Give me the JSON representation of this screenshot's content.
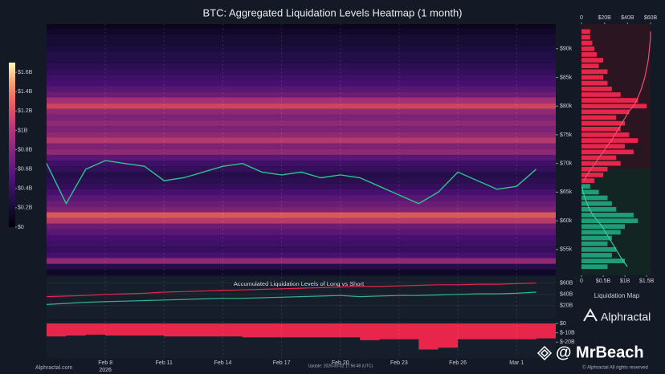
{
  "title": "BTC: Aggregated Liquidation Levels Heatmap (1 month)",
  "side_title": "Liquidation Map",
  "brand": "Alphractal",
  "watermark": "@ MrBeach",
  "footer": {
    "site": "Alphractal.com",
    "update": "Update: 2026-03-02 17:56:48 (UTC)",
    "rights": "© Alphractal All rights reserved"
  },
  "chart_data": [
    {
      "type": "heatmap",
      "y": [
        51000,
        52000,
        53000,
        54000,
        55000,
        56000,
        57000,
        58000,
        59000,
        60000,
        61000,
        62000,
        63000,
        64000,
        65000,
        66000,
        67000,
        68000,
        69000,
        70000,
        71000,
        72000,
        73000,
        74000,
        75000,
        76000,
        77000,
        78000,
        79000,
        80000,
        81000,
        82000,
        83000,
        84000,
        85000,
        86000,
        87000,
        88000,
        89000,
        90000,
        91000,
        92000,
        93000,
        94000
      ],
      "values": [
        0.15,
        0.3,
        0.9,
        0.5,
        0.4,
        0.45,
        0.5,
        0.6,
        0.7,
        1.1,
        1.3,
        0.8,
        0.7,
        0.6,
        0.5,
        0.4,
        0.35,
        0.3,
        0.4,
        0.45,
        0.6,
        0.9,
        0.8,
        1.1,
        0.9,
        0.8,
        0.9,
        0.8,
        0.9,
        1.2,
        1.0,
        0.7,
        0.6,
        0.5,
        0.45,
        0.4,
        0.35,
        0.3,
        0.3,
        0.25,
        0.2,
        0.2,
        0.15,
        0.1
      ],
      "clim": [
        0,
        1.7
      ],
      "cticks": [
        {
          "value": 0,
          "label": "$0"
        },
        {
          "value": 0.2,
          "label": "$0.2B"
        },
        {
          "value": 0.4,
          "label": "$0.4B"
        },
        {
          "value": 0.6,
          "label": "$0.6B"
        },
        {
          "value": 0.8,
          "label": "$0.8B"
        },
        {
          "value": 1,
          "label": "$1B"
        },
        {
          "value": 1.2,
          "label": "$1.2B"
        },
        {
          "value": 1.4,
          "label": "$1.4B"
        },
        {
          "value": 1.6,
          "label": "$1.6B"
        }
      ],
      "ylim": [
        50500,
        94300
      ],
      "yticks": [
        {
          "value": 55000,
          "label": "$55k"
        },
        {
          "value": 60000,
          "label": "$60k"
        },
        {
          "value": 65000,
          "label": "$65k"
        },
        {
          "value": 70000,
          "label": "$70k"
        },
        {
          "value": 75000,
          "label": "$75k"
        },
        {
          "value": 80000,
          "label": "$80k"
        },
        {
          "value": 85000,
          "label": "$85k"
        },
        {
          "value": 90000,
          "label": "$90k"
        }
      ],
      "xlim": [
        "2026-02-05",
        "2026-03-03"
      ],
      "price": {
        "color": "#2bc48a",
        "x": [
          "2026-02-05",
          "2026-02-06",
          "2026-02-07",
          "2026-02-08",
          "2026-02-09",
          "2026-02-10",
          "2026-02-11",
          "2026-02-12",
          "2026-02-13",
          "2026-02-14",
          "2026-02-15",
          "2026-02-16",
          "2026-02-17",
          "2026-02-18",
          "2026-02-19",
          "2026-02-20",
          "2026-02-21",
          "2026-02-22",
          "2026-02-23",
          "2026-02-24",
          "2026-02-25",
          "2026-02-26",
          "2026-02-27",
          "2026-02-28",
          "2026-03-01",
          "2026-03-02"
        ],
        "values": [
          70000,
          63000,
          69000,
          70500,
          70000,
          69500,
          67000,
          67500,
          68500,
          69500,
          70000,
          68500,
          68000,
          68500,
          67500,
          68000,
          67500,
          66000,
          64500,
          63000,
          65000,
          68500,
          67000,
          65500,
          66000,
          69000
        ]
      }
    },
    {
      "type": "hbar",
      "y": [
        52000,
        53000,
        54000,
        55000,
        56000,
        57000,
        58000,
        59000,
        60000,
        61000,
        62000,
        63000,
        64000,
        65000,
        66000,
        67000,
        68000,
        69000,
        70000,
        71000,
        72000,
        73000,
        74000,
        75000,
        76000,
        77000,
        78000,
        79000,
        80000,
        81000,
        82000,
        83000,
        84000,
        85000,
        86000,
        87000,
        88000,
        89000,
        90000,
        91000,
        92000,
        93000
      ],
      "ylim": [
        50500,
        94300
      ],
      "xlim": [
        0,
        1.59
      ],
      "xticks": [
        0,
        {
          "value": 0.5,
          "label": "$0.5B"
        },
        {
          "value": 1,
          "label": "$1B"
        },
        {
          "value": 1.5,
          "label": "$1.5B"
        }
      ],
      "x2lim": [
        0,
        60
      ],
      "x2ticks": [
        0,
        {
          "value": 20,
          "label": "$20B"
        },
        {
          "value": 40,
          "label": "$40B"
        },
        {
          "value": 60,
          "label": "$60B"
        }
      ],
      "series": [
        {
          "color": "#e8254a",
          "values": [
            null,
            null,
            null,
            null,
            null,
            null,
            null,
            null,
            null,
            null,
            null,
            null,
            null,
            null,
            null,
            0.3,
            0.5,
            0.6,
            0.9,
            0.8,
            1.2,
            1.0,
            1.3,
            1.1,
            0.9,
            1.0,
            0.8,
            1.1,
            1.5,
            1.3,
            0.9,
            0.7,
            0.6,
            0.5,
            0.6,
            0.4,
            0.5,
            0.35,
            0.3,
            0.25,
            0.2,
            0.2
          ]
        },
        {
          "color": "#1e9e78",
          "values": [
            0.6,
            1.0,
            0.7,
            0.8,
            0.6,
            0.7,
            0.9,
            1.0,
            1.3,
            1.2,
            0.8,
            0.7,
            0.6,
            0.4,
            0.2,
            null,
            null,
            null,
            null,
            null,
            null,
            null,
            null,
            null,
            null,
            null,
            null,
            null,
            null,
            null,
            null,
            null,
            null,
            null,
            null,
            null,
            null,
            null,
            null,
            null,
            null,
            null
          ]
        },
        {
          "color": "#f0506e",
          "axis": "x2",
          "values": [
            null,
            null,
            null,
            null,
            null,
            null,
            null,
            null,
            null,
            null,
            null,
            null,
            null,
            null,
            null,
            2,
            5,
            8,
            12,
            15,
            19,
            22,
            26,
            29,
            32,
            35,
            38,
            41,
            45,
            48,
            50,
            52,
            53.5,
            55,
            56,
            57,
            58,
            58.5,
            59,
            59.5,
            60,
            60
          ]
        },
        {
          "color": "#3fc79a",
          "axis": "x2",
          "values": [
            40,
            36,
            33,
            30,
            27,
            24,
            21,
            18,
            14,
            10,
            7,
            5,
            3,
            1.5,
            0.5,
            null,
            null,
            null,
            null,
            null,
            null,
            null,
            null,
            null,
            null,
            null,
            null,
            null,
            null,
            null,
            null,
            null,
            null,
            null,
            null,
            null,
            null,
            null,
            null,
            null,
            null,
            null
          ]
        }
      ]
    },
    {
      "type": "line",
      "title": "Accumulated Liquidation Levels of Long vs Short",
      "x": [
        "2026-02-05",
        "2026-02-06",
        "2026-02-07",
        "2026-02-08",
        "2026-02-09",
        "2026-02-10",
        "2026-02-11",
        "2026-02-12",
        "2026-02-13",
        "2026-02-14",
        "2026-02-15",
        "2026-02-16",
        "2026-02-17",
        "2026-02-18",
        "2026-02-19",
        "2026-02-20",
        "2026-02-21",
        "2026-02-22",
        "2026-02-23",
        "2026-02-24",
        "2026-02-25",
        "2026-02-26",
        "2026-02-27",
        "2026-02-28",
        "2026-03-01",
        "2026-03-02"
      ],
      "xlim": [
        "2026-02-05",
        "2026-03-03"
      ],
      "ylim": [
        -3,
        71
      ],
      "yticks": [
        {
          "value": 20,
          "label": "$20B"
        },
        {
          "value": 40,
          "label": "$40B"
        },
        {
          "value": 60,
          "label": "$60B"
        }
      ],
      "series": [
        {
          "color": "#e8254a",
          "values": [
            36,
            37,
            38,
            40,
            41,
            42,
            44,
            45,
            46,
            47,
            48,
            49,
            50,
            51,
            52,
            53,
            54,
            54,
            55,
            56,
            57,
            57,
            58,
            58,
            59,
            60
          ]
        },
        {
          "color": "#35b38a",
          "values": [
            22,
            24,
            26,
            27,
            28,
            29,
            30,
            31,
            32,
            33,
            33,
            34,
            35,
            36,
            37,
            38,
            36,
            37,
            38,
            38,
            39,
            40,
            41,
            41,
            42,
            44
          ]
        }
      ]
    },
    {
      "type": "area",
      "x": [
        "2026-02-05",
        "2026-02-06",
        "2026-02-07",
        "2026-02-08",
        "2026-02-09",
        "2026-02-10",
        "2026-02-11",
        "2026-02-12",
        "2026-02-13",
        "2026-02-14",
        "2026-02-15",
        "2026-02-16",
        "2026-02-17",
        "2026-02-18",
        "2026-02-19",
        "2026-02-20",
        "2026-02-21",
        "2026-02-22",
        "2026-02-23",
        "2026-02-24",
        "2026-02-25",
        "2026-02-26",
        "2026-02-27",
        "2026-02-28",
        "2026-03-01",
        "2026-03-02"
      ],
      "values": [
        -14,
        -13,
        -12,
        -13,
        -13,
        -13,
        -14,
        -14,
        -14,
        -14,
        -15,
        -15,
        -15,
        -15,
        -15,
        -15,
        -18,
        -17,
        -17,
        -28,
        -26,
        -17,
        -17,
        -17,
        -17,
        -16
      ],
      "color": "#e8254a",
      "xlim": [
        "2026-02-05",
        "2026-03-03"
      ],
      "ylim": [
        -37,
        2.6
      ],
      "yticks": [
        {
          "value": 0,
          "label": "$0"
        },
        {
          "value": -10,
          "label": "$-10B"
        },
        {
          "value": -20,
          "label": "$-20B"
        }
      ],
      "xticks": [
        {
          "value": "2026-02-08",
          "label": "Feb 8",
          "sublabel": "2026"
        },
        {
          "value": "2026-02-11",
          "label": "Feb 11"
        },
        {
          "value": "2026-02-14",
          "label": "Feb 14"
        },
        {
          "value": "2026-02-17",
          "label": "Feb 17"
        },
        {
          "value": "2026-02-20",
          "label": "Feb 20"
        },
        {
          "value": "2026-02-23",
          "label": "Feb 23"
        },
        {
          "value": "2026-02-26",
          "label": "Feb 26"
        },
        {
          "value": "2026-03-01",
          "label": "Mar 1"
        }
      ]
    }
  ]
}
